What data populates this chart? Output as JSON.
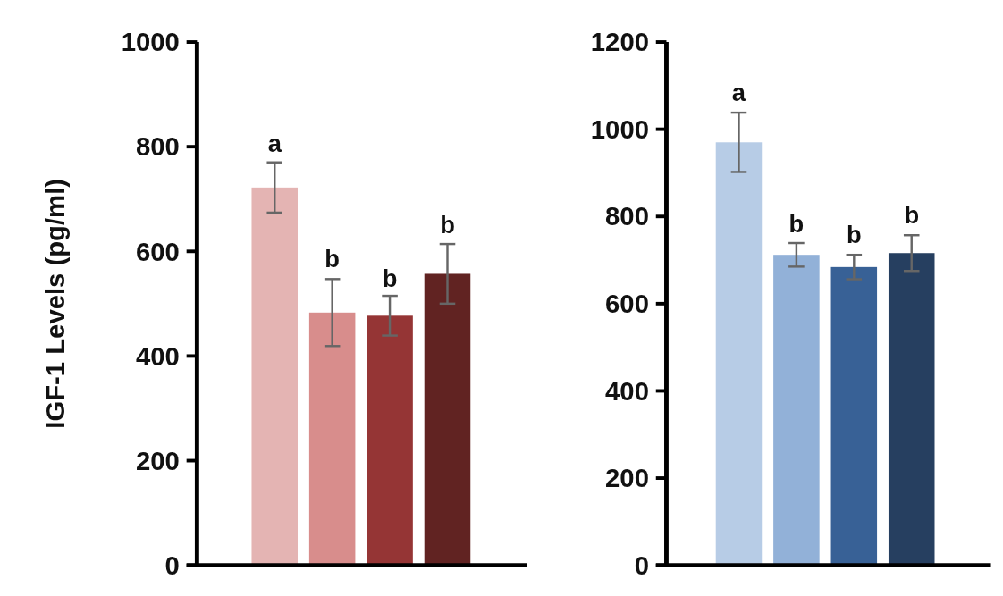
{
  "chart_data": [
    {
      "type": "bar",
      "ylabel": "IGF-1 Levels (pg/ml)",
      "categories": [
        null,
        null,
        null,
        null
      ],
      "values": [
        722,
        483,
        477,
        557
      ],
      "colors": [
        "#e4b4b3",
        "#d88d8c",
        "#953535",
        "#612322"
      ],
      "errors": [
        48,
        64,
        38,
        57
      ],
      "ylim": [
        0,
        1000
      ],
      "yticks": [
        0,
        200,
        400,
        600,
        800,
        1000
      ],
      "tick_labels": "y",
      "annotations": [
        {
          "text": "a",
          "y": 770
        },
        {
          "text": "b",
          "y": 550
        },
        {
          "text": "b",
          "y": 513
        },
        {
          "text": "b",
          "y": 615
        }
      ]
    },
    {
      "type": "bar",
      "categories": [
        null,
        null,
        null,
        null
      ],
      "values": [
        970,
        712,
        684,
        716
      ],
      "colors": [
        "#b7cce6",
        "#92b1d8",
        "#386196",
        "#263f60"
      ],
      "errors": [
        68,
        27,
        28,
        41
      ],
      "ylim": [
        0,
        1200
      ],
      "yticks": [
        0,
        200,
        400,
        600,
        800,
        1000,
        1200
      ],
      "tick_labels": "y",
      "annotations": [
        {
          "text": "a",
          "y": 1040
        },
        {
          "text": "b",
          "y": 740
        },
        {
          "text": "b",
          "y": 714
        },
        {
          "text": "b",
          "y": 760
        }
      ]
    }
  ]
}
